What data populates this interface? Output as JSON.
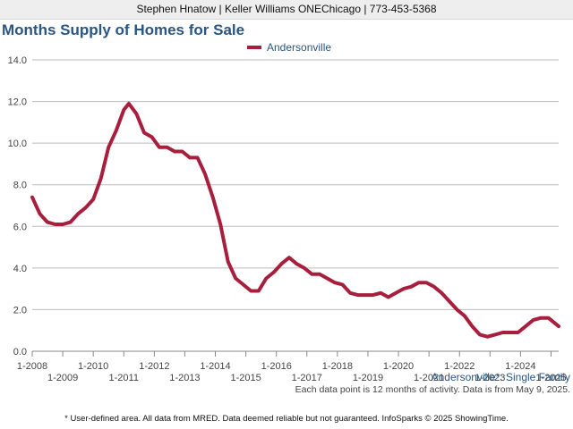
{
  "header": {
    "text": "Stephen Hnatow | Keller Williams ONEChicago | 773-453-5368"
  },
  "title": "Months Supply of Homes for Sale",
  "legend": {
    "label": "Andersonville"
  },
  "area_label": "Andersonville*: Single Family",
  "data_note": "Each data point is 12 months of activity. Data is from May 9, 2025.",
  "disclaimer": "* User-defined area. All data from MRED. Data deemed reliable but not guaranteed. InfoSparks © 2025 ShowingTime.",
  "colors": {
    "series": "#a81e3d",
    "title": "#2a5584",
    "grid": "#bbbbbb"
  },
  "chart_data": {
    "type": "line",
    "title": "Months Supply of Homes for Sale",
    "ylim": [
      0,
      14
    ],
    "y_ticks": [
      "0.0",
      "2.0",
      "4.0",
      "6.0",
      "8.0",
      "10.0",
      "12.0",
      "14.0"
    ],
    "x_ticks_upper": [
      "1-2008",
      "1-2010",
      "1-2012",
      "1-2014",
      "1-2016",
      "1-2018",
      "1-2020",
      "1-2022",
      "1-2024"
    ],
    "x_ticks_lower": [
      "1-2009",
      "1-2011",
      "1-2013",
      "1-2015",
      "1-2017",
      "1-2019",
      "1-2021",
      "1-2023",
      "1-2025"
    ],
    "grid": true,
    "legend_position": "top-center",
    "series": [
      {
        "name": "Andersonville",
        "points": [
          [
            "1-2008",
            7.4
          ],
          [
            "4-2008",
            6.6
          ],
          [
            "7-2008",
            6.2
          ],
          [
            "10-2008",
            6.1
          ],
          [
            "1-2009",
            6.1
          ],
          [
            "4-2009",
            6.2
          ],
          [
            "7-2009",
            6.6
          ],
          [
            "10-2009",
            6.9
          ],
          [
            "1-2010",
            7.3
          ],
          [
            "4-2010",
            8.3
          ],
          [
            "7-2010",
            9.8
          ],
          [
            "10-2010",
            10.6
          ],
          [
            "1-2011",
            11.6
          ],
          [
            "3-2011",
            11.9
          ],
          [
            "6-2011",
            11.4
          ],
          [
            "9-2011",
            10.5
          ],
          [
            "12-2011",
            10.3
          ],
          [
            "3-2012",
            9.8
          ],
          [
            "6-2012",
            9.8
          ],
          [
            "9-2012",
            9.6
          ],
          [
            "12-2012",
            9.6
          ],
          [
            "3-2013",
            9.3
          ],
          [
            "6-2013",
            9.3
          ],
          [
            "9-2013",
            8.5
          ],
          [
            "12-2013",
            7.4
          ],
          [
            "3-2014",
            6.1
          ],
          [
            "6-2014",
            4.3
          ],
          [
            "9-2014",
            3.5
          ],
          [
            "12-2014",
            3.2
          ],
          [
            "3-2015",
            2.9
          ],
          [
            "6-2015",
            2.9
          ],
          [
            "9-2015",
            3.5
          ],
          [
            "12-2015",
            3.8
          ],
          [
            "3-2016",
            4.2
          ],
          [
            "6-2016",
            4.5
          ],
          [
            "9-2016",
            4.2
          ],
          [
            "12-2016",
            4.0
          ],
          [
            "3-2017",
            3.7
          ],
          [
            "6-2017",
            3.7
          ],
          [
            "9-2017",
            3.5
          ],
          [
            "12-2017",
            3.3
          ],
          [
            "3-2018",
            3.2
          ],
          [
            "6-2018",
            2.8
          ],
          [
            "9-2018",
            2.7
          ],
          [
            "12-2018",
            2.7
          ],
          [
            "3-2019",
            2.7
          ],
          [
            "6-2019",
            2.8
          ],
          [
            "9-2019",
            2.6
          ],
          [
            "12-2019",
            2.8
          ],
          [
            "3-2020",
            3.0
          ],
          [
            "6-2020",
            3.1
          ],
          [
            "9-2020",
            3.3
          ],
          [
            "12-2020",
            3.3
          ],
          [
            "3-2021",
            3.1
          ],
          [
            "6-2021",
            2.8
          ],
          [
            "9-2021",
            2.4
          ],
          [
            "12-2021",
            2.0
          ],
          [
            "3-2022",
            1.7
          ],
          [
            "6-2022",
            1.2
          ],
          [
            "9-2022",
            0.8
          ],
          [
            "12-2022",
            0.7
          ],
          [
            "3-2023",
            0.8
          ],
          [
            "6-2023",
            0.9
          ],
          [
            "9-2023",
            0.9
          ],
          [
            "12-2023",
            0.9
          ],
          [
            "3-2024",
            1.2
          ],
          [
            "6-2024",
            1.5
          ],
          [
            "9-2024",
            1.6
          ],
          [
            "12-2024",
            1.6
          ],
          [
            "2-2025",
            1.4
          ],
          [
            "4-2025",
            1.2
          ]
        ]
      }
    ]
  }
}
